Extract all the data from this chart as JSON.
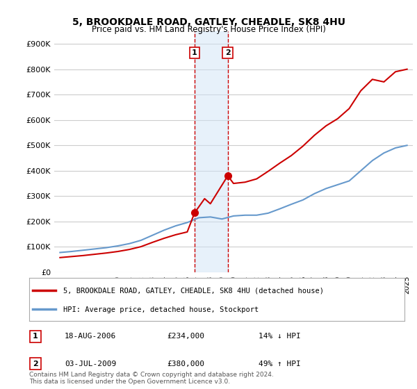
{
  "title": "5, BROOKDALE ROAD, GATLEY, CHEADLE, SK8 4HU",
  "subtitle": "Price paid vs. HM Land Registry's House Price Index (HPI)",
  "ylabel_ticks": [
    "£0",
    "£100K",
    "£200K",
    "£300K",
    "£400K",
    "£500K",
    "£600K",
    "£700K",
    "£800K",
    "£900K"
  ],
  "ytick_values": [
    0,
    100000,
    200000,
    300000,
    400000,
    500000,
    600000,
    700000,
    800000,
    900000
  ],
  "ylim": [
    0,
    950000
  ],
  "xlim_start": 1995.0,
  "xlim_end": 2025.5,
  "background_color": "#ffffff",
  "plot_bg_color": "#ffffff",
  "grid_color": "#cccccc",
  "hpi_line_color": "#6699cc",
  "property_line_color": "#cc0000",
  "transaction1_date": "2006-08-18",
  "transaction1_price": 234000,
  "transaction1_x": 2006.63,
  "transaction2_date": "2009-07-03",
  "transaction2_price": 380000,
  "transaction2_x": 2009.5,
  "shade_color": "#d0e4f7",
  "shade_alpha": 0.5,
  "hpi_years": [
    1995,
    1996,
    1997,
    1998,
    1999,
    2000,
    2001,
    2002,
    2003,
    2004,
    2005,
    2006,
    2007,
    2008,
    2009,
    2010,
    2011,
    2012,
    2013,
    2014,
    2015,
    2016,
    2017,
    2018,
    2019,
    2020,
    2021,
    2022,
    2023,
    2024,
    2025
  ],
  "hpi_values": [
    78000,
    82000,
    87000,
    92000,
    97000,
    104000,
    113000,
    126000,
    146000,
    166000,
    183000,
    196000,
    215000,
    218000,
    210000,
    222000,
    225000,
    225000,
    233000,
    250000,
    268000,
    285000,
    310000,
    330000,
    345000,
    360000,
    400000,
    440000,
    470000,
    490000,
    500000
  ],
  "property_years": [
    1995.0,
    1996.0,
    1997.0,
    1998.0,
    1999.0,
    2000.0,
    2001.0,
    2002.0,
    2003.0,
    2004.0,
    2005.0,
    2006.0,
    2006.63,
    2007.5,
    2008.0,
    2009.5,
    2010.0,
    2011.0,
    2012.0,
    2013.0,
    2014.0,
    2015.0,
    2016.0,
    2017.0,
    2018.0,
    2019.0,
    2020.0,
    2021.0,
    2022.0,
    2023.0,
    2024.0,
    2025.0
  ],
  "property_values": [
    58000,
    62000,
    66000,
    71000,
    76000,
    82000,
    90000,
    101000,
    118000,
    134000,
    148000,
    159000,
    234000,
    290000,
    270000,
    380000,
    350000,
    355000,
    368000,
    398000,
    430000,
    460000,
    497000,
    540000,
    577000,
    605000,
    645000,
    715000,
    760000,
    750000,
    790000,
    800000
  ],
  "legend_label_property": "5, BROOKDALE ROAD, GATLEY, CHEADLE, SK8 4HU (detached house)",
  "legend_label_hpi": "HPI: Average price, detached house, Stockport",
  "transaction1_label": "1",
  "transaction1_display_date": "18-AUG-2006",
  "transaction1_display_price": "£234,000",
  "transaction1_hpi_note": "14% ↓ HPI",
  "transaction2_label": "2",
  "transaction2_display_date": "03-JUL-2009",
  "transaction2_display_price": "£380,000",
  "transaction2_hpi_note": "49% ↑ HPI",
  "footer": "Contains HM Land Registry data © Crown copyright and database right 2024.\nThis data is licensed under the Open Government Licence v3.0.",
  "xtick_years": [
    1995,
    1996,
    1997,
    1998,
    1999,
    2000,
    2001,
    2002,
    2003,
    2004,
    2005,
    2006,
    2007,
    2008,
    2009,
    2010,
    2011,
    2012,
    2013,
    2014,
    2015,
    2016,
    2017,
    2018,
    2019,
    2020,
    2021,
    2022,
    2023,
    2024,
    2025
  ]
}
